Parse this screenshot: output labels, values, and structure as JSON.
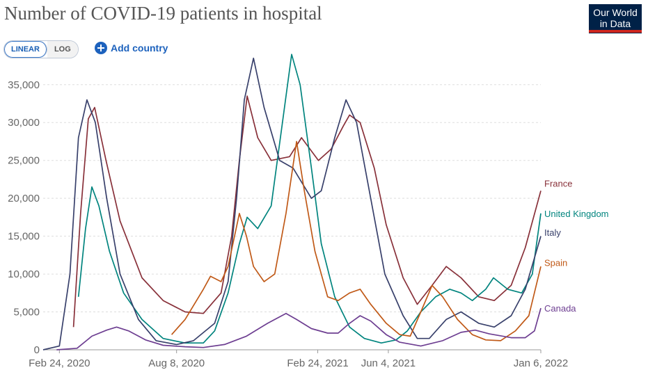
{
  "header": {
    "title": "Number of COVID-19 patients in hospital",
    "logo_line1": "Our World",
    "logo_line2": "in Data"
  },
  "controls": {
    "linear_label": "LINEAR",
    "log_label": "LOG",
    "add_country_label": "Add country"
  },
  "chart_data": {
    "type": "line",
    "title": "Number of COVID-19 patients in hospital",
    "xlabel": "",
    "ylabel": "",
    "x_range": [
      "2020-02-01",
      "2022-01-06"
    ],
    "ylim": [
      0,
      37000
    ],
    "y_ticks": [
      0,
      5000,
      10000,
      15000,
      20000,
      25000,
      30000,
      35000
    ],
    "y_tick_labels": [
      "0",
      "5,000",
      "10,000",
      "15,000",
      "20,000",
      "25,000",
      "30,000",
      "35,000"
    ],
    "x_ticks": [
      "2020-02-24",
      "2020-08-08",
      "2021-02-24",
      "2021-06-04",
      "2022-01-06"
    ],
    "x_tick_labels": [
      "Feb 24, 2020",
      "Aug 8, 2020",
      "Feb 24, 2021",
      "Jun 4, 2021",
      "Jan 6, 2022"
    ],
    "grid": "horizontal dashed",
    "legend": "line-end labels",
    "series": [
      {
        "name": "France",
        "color": "#883039",
        "points": [
          [
            "2020-03-15",
            3000
          ],
          [
            "2020-03-25",
            18000
          ],
          [
            "2020-04-05",
            30500
          ],
          [
            "2020-04-14",
            32000
          ],
          [
            "2020-04-30",
            25000
          ],
          [
            "2020-05-20",
            17000
          ],
          [
            "2020-06-20",
            9500
          ],
          [
            "2020-07-20",
            6500
          ],
          [
            "2020-08-20",
            5000
          ],
          [
            "2020-09-15",
            4800
          ],
          [
            "2020-10-10",
            7500
          ],
          [
            "2020-10-25",
            15000
          ],
          [
            "2020-11-05",
            25000
          ],
          [
            "2020-11-16",
            33500
          ],
          [
            "2020-12-01",
            28000
          ],
          [
            "2020-12-20",
            25000
          ],
          [
            "2021-01-15",
            25500
          ],
          [
            "2021-02-01",
            28000
          ],
          [
            "2021-02-25",
            25000
          ],
          [
            "2021-03-15",
            26500
          ],
          [
            "2021-04-01",
            29500
          ],
          [
            "2021-04-10",
            31000
          ],
          [
            "2021-04-25",
            30000
          ],
          [
            "2021-05-15",
            24000
          ],
          [
            "2021-06-01",
            16500
          ],
          [
            "2021-06-25",
            9500
          ],
          [
            "2021-07-15",
            6000
          ],
          [
            "2021-08-05",
            8500
          ],
          [
            "2021-08-25",
            11000
          ],
          [
            "2021-09-15",
            9500
          ],
          [
            "2021-10-10",
            7000
          ],
          [
            "2021-11-01",
            6500
          ],
          [
            "2021-11-25",
            8500
          ],
          [
            "2021-12-15",
            13500
          ],
          [
            "2022-01-06",
            21000
          ]
        ]
      },
      {
        "name": "United Kingdom",
        "color": "#00847e",
        "points": [
          [
            "2020-03-22",
            7000
          ],
          [
            "2020-04-01",
            16000
          ],
          [
            "2020-04-10",
            21500
          ],
          [
            "2020-04-20",
            19000
          ],
          [
            "2020-05-05",
            13000
          ],
          [
            "2020-05-25",
            7500
          ],
          [
            "2020-06-20",
            4000
          ],
          [
            "2020-07-20",
            1500
          ],
          [
            "2020-08-20",
            900
          ],
          [
            "2020-09-15",
            900
          ],
          [
            "2020-10-01",
            2500
          ],
          [
            "2020-10-20",
            7500
          ],
          [
            "2020-11-05",
            14000
          ],
          [
            "2020-11-16",
            17500
          ],
          [
            "2020-12-01",
            16000
          ],
          [
            "2020-12-20",
            19000
          ],
          [
            "2021-01-05",
            30000
          ],
          [
            "2021-01-18",
            39000
          ],
          [
            "2021-01-30",
            35000
          ],
          [
            "2021-02-15",
            24000
          ],
          [
            "2021-03-01",
            14000
          ],
          [
            "2021-03-20",
            7000
          ],
          [
            "2021-04-10",
            3000
          ],
          [
            "2021-05-01",
            1500
          ],
          [
            "2021-05-25",
            900
          ],
          [
            "2021-06-15",
            1300
          ],
          [
            "2021-07-01",
            2500
          ],
          [
            "2021-07-20",
            5000
          ],
          [
            "2021-08-10",
            7000
          ],
          [
            "2021-08-30",
            8000
          ],
          [
            "2021-09-15",
            7500
          ],
          [
            "2021-10-01",
            6500
          ],
          [
            "2021-10-20",
            8000
          ],
          [
            "2021-10-31",
            9500
          ],
          [
            "2021-11-20",
            8000
          ],
          [
            "2021-12-10",
            7500
          ],
          [
            "2021-12-25",
            10000
          ],
          [
            "2022-01-06",
            18000
          ]
        ]
      },
      {
        "name": "Italy",
        "color": "#38406b",
        "points": [
          [
            "2020-02-01",
            0
          ],
          [
            "2020-02-24",
            500
          ],
          [
            "2020-03-10",
            10000
          ],
          [
            "2020-03-22",
            28000
          ],
          [
            "2020-04-03",
            33000
          ],
          [
            "2020-04-15",
            30000
          ],
          [
            "2020-05-01",
            20000
          ],
          [
            "2020-05-20",
            10000
          ],
          [
            "2020-06-15",
            4000
          ],
          [
            "2020-07-10",
            1200
          ],
          [
            "2020-08-08",
            700
          ],
          [
            "2020-09-01",
            1200
          ],
          [
            "2020-10-01",
            3500
          ],
          [
            "2020-10-20",
            9000
          ],
          [
            "2020-11-01",
            20000
          ],
          [
            "2020-11-12",
            33000
          ],
          [
            "2020-11-25",
            38500
          ],
          [
            "2020-12-10",
            32000
          ],
          [
            "2021-01-01",
            25000
          ],
          [
            "2021-01-20",
            24000
          ],
          [
            "2021-02-15",
            20000
          ],
          [
            "2021-03-01",
            21000
          ],
          [
            "2021-03-20",
            28000
          ],
          [
            "2021-04-05",
            33000
          ],
          [
            "2021-04-20",
            30000
          ],
          [
            "2021-05-10",
            20000
          ],
          [
            "2021-05-30",
            10000
          ],
          [
            "2021-06-25",
            4500
          ],
          [
            "2021-07-15",
            1500
          ],
          [
            "2021-08-01",
            1500
          ],
          [
            "2021-08-25",
            4000
          ],
          [
            "2021-09-15",
            5000
          ],
          [
            "2021-10-10",
            3500
          ],
          [
            "2021-11-01",
            3000
          ],
          [
            "2021-11-25",
            4500
          ],
          [
            "2021-12-15",
            8000
          ],
          [
            "2022-01-06",
            15000
          ]
        ]
      },
      {
        "name": "Spain",
        "color": "#c05917",
        "points": [
          [
            "2020-08-01",
            2000
          ],
          [
            "2020-08-20",
            4000
          ],
          [
            "2020-09-15",
            8000
          ],
          [
            "2020-09-25",
            9700
          ],
          [
            "2020-10-10",
            9000
          ],
          [
            "2020-10-20",
            11000
          ],
          [
            "2020-11-05",
            18000
          ],
          [
            "2020-11-15",
            15000
          ],
          [
            "2020-11-25",
            11000
          ],
          [
            "2020-12-10",
            9000
          ],
          [
            "2020-12-25",
            10000
          ],
          [
            "2021-01-10",
            18000
          ],
          [
            "2021-01-25",
            27500
          ],
          [
            "2021-02-05",
            21000
          ],
          [
            "2021-02-20",
            13000
          ],
          [
            "2021-03-10",
            7000
          ],
          [
            "2021-03-25",
            6500
          ],
          [
            "2021-04-10",
            7500
          ],
          [
            "2021-04-25",
            8000
          ],
          [
            "2021-05-10",
            6000
          ],
          [
            "2021-06-01",
            3500
          ],
          [
            "2021-06-20",
            2000
          ],
          [
            "2021-07-05",
            1800
          ],
          [
            "2021-07-20",
            5000
          ],
          [
            "2021-08-05",
            8500
          ],
          [
            "2021-08-20",
            7000
          ],
          [
            "2021-09-10",
            4000
          ],
          [
            "2021-10-01",
            2000
          ],
          [
            "2021-10-20",
            1300
          ],
          [
            "2021-11-10",
            1200
          ],
          [
            "2021-12-01",
            2500
          ],
          [
            "2021-12-20",
            4500
          ],
          [
            "2022-01-06",
            11000
          ]
        ]
      },
      {
        "name": "Canada",
        "color": "#6d3e91",
        "points": [
          [
            "2020-02-20",
            0
          ],
          [
            "2020-03-20",
            200
          ],
          [
            "2020-04-10",
            1800
          ],
          [
            "2020-05-01",
            2600
          ],
          [
            "2020-05-15",
            3000
          ],
          [
            "2020-06-01",
            2500
          ],
          [
            "2020-06-25",
            1300
          ],
          [
            "2020-07-20",
            600
          ],
          [
            "2020-08-20",
            400
          ],
          [
            "2020-09-15",
            300
          ],
          [
            "2020-10-15",
            700
          ],
          [
            "2020-11-15",
            1800
          ],
          [
            "2020-12-15",
            3500
          ],
          [
            "2021-01-10",
            4800
          ],
          [
            "2021-01-25",
            4000
          ],
          [
            "2021-02-15",
            2800
          ],
          [
            "2021-03-10",
            2200
          ],
          [
            "2021-03-25",
            2200
          ],
          [
            "2021-04-10",
            3500
          ],
          [
            "2021-04-25",
            4500
          ],
          [
            "2021-05-10",
            3800
          ],
          [
            "2021-06-01",
            2000
          ],
          [
            "2021-06-20",
            1000
          ],
          [
            "2021-07-20",
            500
          ],
          [
            "2021-08-20",
            1200
          ],
          [
            "2021-09-15",
            2300
          ],
          [
            "2021-10-05",
            2600
          ],
          [
            "2021-10-25",
            2100
          ],
          [
            "2021-11-25",
            1600
          ],
          [
            "2021-12-15",
            1600
          ],
          [
            "2021-12-28",
            2500
          ],
          [
            "2022-01-06",
            5500
          ]
        ]
      }
    ],
    "label_order": [
      {
        "name": "France",
        "label_value": 22000
      },
      {
        "name": "United Kingdom",
        "label_value": 18000
      },
      {
        "name": "Italy",
        "label_value": 15500
      },
      {
        "name": "Spain",
        "label_value": 11500
      },
      {
        "name": "Canada",
        "label_value": 5500
      }
    ]
  }
}
